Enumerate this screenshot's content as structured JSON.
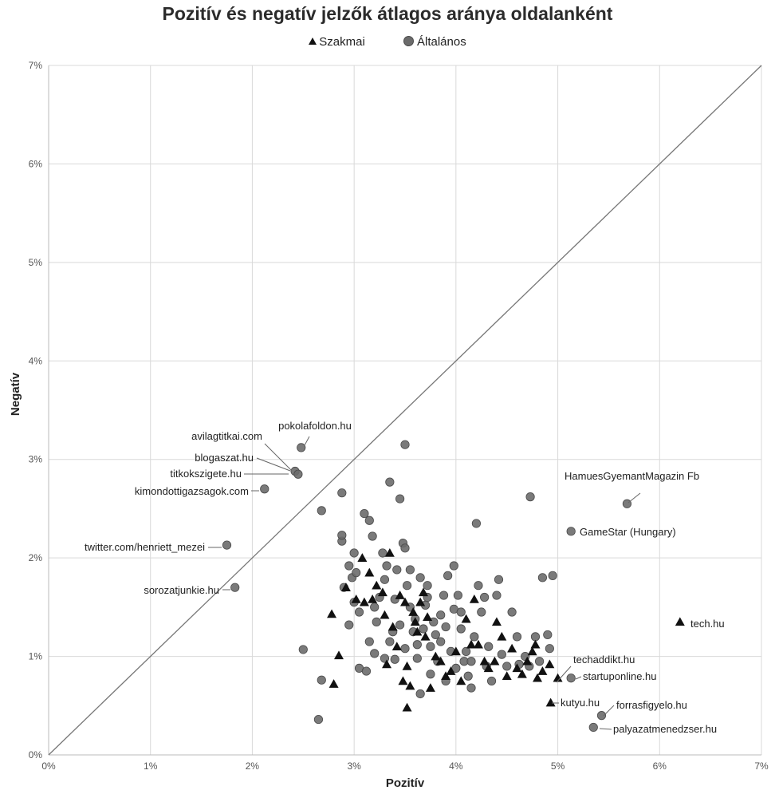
{
  "chart_data": {
    "type": "scatter",
    "title": "Pozitív és negatív jelzők átlagos aránya oldalanként",
    "xlabel": "Pozitív",
    "ylabel": "Negatív",
    "xlim": [
      0,
      7
    ],
    "ylim": [
      0,
      7
    ],
    "x_ticks": [
      "0%",
      "1%",
      "2%",
      "3%",
      "4%",
      "5%",
      "6%",
      "7%"
    ],
    "y_ticks": [
      "0%",
      "1%",
      "2%",
      "3%",
      "4%",
      "5%",
      "6%",
      "7%"
    ],
    "grid": true,
    "legend_position": "top",
    "reference_line": {
      "from": [
        0,
        0
      ],
      "to": [
        7,
        7
      ]
    },
    "colors": {
      "szakmai": "#111111",
      "altalanos": "#6b6b6b",
      "grid": "#d9d9d9",
      "diagonal": "#777777"
    },
    "series": [
      {
        "name": "Szakmai",
        "marker": "triangle",
        "points": [
          [
            2.78,
            1.43
          ],
          [
            2.85,
            1.01
          ],
          [
            2.8,
            0.72
          ],
          [
            3.02,
            1.58
          ],
          [
            3.08,
            2.0
          ],
          [
            3.1,
            1.55
          ],
          [
            3.15,
            1.85
          ],
          [
            3.18,
            1.58
          ],
          [
            3.22,
            1.72
          ],
          [
            3.28,
            1.65
          ],
          [
            3.3,
            1.42
          ],
          [
            3.35,
            2.05
          ],
          [
            3.38,
            1.3
          ],
          [
            3.42,
            1.1
          ],
          [
            3.45,
            1.62
          ],
          [
            3.48,
            0.75
          ],
          [
            3.5,
            1.55
          ],
          [
            3.52,
            0.9
          ],
          [
            3.55,
            0.7
          ],
          [
            3.58,
            1.45
          ],
          [
            3.6,
            1.35
          ],
          [
            3.62,
            1.25
          ],
          [
            3.65,
            1.55
          ],
          [
            3.68,
            1.65
          ],
          [
            3.7,
            1.2
          ],
          [
            3.72,
            1.4
          ],
          [
            3.75,
            0.68
          ],
          [
            3.8,
            1.0
          ],
          [
            3.85,
            0.95
          ],
          [
            3.9,
            0.8
          ],
          [
            3.95,
            0.85
          ],
          [
            4.0,
            1.05
          ],
          [
            4.05,
            0.75
          ],
          [
            4.1,
            1.38
          ],
          [
            4.15,
            1.12
          ],
          [
            4.18,
            1.58
          ],
          [
            4.22,
            1.12
          ],
          [
            4.28,
            0.95
          ],
          [
            4.32,
            0.88
          ],
          [
            4.38,
            0.95
          ],
          [
            4.4,
            1.35
          ],
          [
            4.45,
            1.2
          ],
          [
            4.5,
            0.8
          ],
          [
            4.55,
            1.08
          ],
          [
            4.6,
            0.88
          ],
          [
            4.65,
            0.82
          ],
          [
            4.7,
            0.95
          ],
          [
            4.75,
            1.05
          ],
          [
            4.8,
            0.78
          ],
          [
            4.85,
            0.85
          ],
          [
            4.92,
            0.92
          ],
          [
            5.0,
            0.78
          ],
          [
            4.78,
            1.12
          ],
          [
            3.52,
            0.48
          ],
          [
            3.32,
            0.92
          ],
          [
            2.92,
            1.7
          ],
          [
            4.93,
            0.53
          ],
          [
            6.2,
            1.35
          ]
        ]
      },
      {
        "name": "Általános",
        "marker": "circle",
        "points": [
          [
            2.48,
            3.12
          ],
          [
            2.42,
            2.88
          ],
          [
            2.45,
            2.85
          ],
          [
            2.12,
            2.7
          ],
          [
            1.75,
            2.13
          ],
          [
            1.83,
            1.7
          ],
          [
            2.5,
            1.07
          ],
          [
            2.65,
            0.36
          ],
          [
            2.68,
            0.76
          ],
          [
            2.68,
            2.48
          ],
          [
            2.88,
            2.66
          ],
          [
            2.88,
            2.17
          ],
          [
            2.88,
            2.23
          ],
          [
            2.9,
            1.7
          ],
          [
            2.95,
            1.92
          ],
          [
            2.98,
            1.8
          ],
          [
            3.0,
            1.55
          ],
          [
            3.0,
            2.05
          ],
          [
            3.02,
            1.85
          ],
          [
            3.05,
            1.45
          ],
          [
            3.05,
            0.88
          ],
          [
            3.1,
            2.45
          ],
          [
            3.12,
            0.85
          ],
          [
            3.15,
            2.38
          ],
          [
            3.18,
            2.22
          ],
          [
            3.2,
            1.5
          ],
          [
            3.22,
            1.35
          ],
          [
            3.25,
            1.6
          ],
          [
            3.28,
            2.05
          ],
          [
            3.3,
            1.78
          ],
          [
            3.32,
            1.92
          ],
          [
            3.35,
            2.77
          ],
          [
            3.35,
            1.15
          ],
          [
            3.38,
            1.25
          ],
          [
            3.4,
            1.58
          ],
          [
            3.42,
            1.88
          ],
          [
            3.45,
            2.6
          ],
          [
            3.45,
            1.32
          ],
          [
            3.48,
            2.15
          ],
          [
            3.5,
            2.1
          ],
          [
            3.5,
            1.08
          ],
          [
            3.52,
            1.72
          ],
          [
            3.55,
            1.5
          ],
          [
            3.58,
            1.25
          ],
          [
            3.6,
            1.38
          ],
          [
            3.62,
            1.12
          ],
          [
            3.62,
            0.98
          ],
          [
            3.65,
            1.8
          ],
          [
            3.68,
            1.28
          ],
          [
            3.7,
            1.52
          ],
          [
            3.72,
            1.72
          ],
          [
            3.75,
            0.82
          ],
          [
            3.75,
            1.1
          ],
          [
            3.78,
            1.35
          ],
          [
            3.8,
            1.22
          ],
          [
            3.82,
            0.95
          ],
          [
            3.85,
            1.42
          ],
          [
            3.88,
            1.62
          ],
          [
            3.9,
            0.75
          ],
          [
            3.9,
            1.3
          ],
          [
            3.92,
            1.82
          ],
          [
            3.95,
            1.05
          ],
          [
            3.98,
            1.92
          ],
          [
            3.98,
            1.48
          ],
          [
            4.0,
            0.88
          ],
          [
            4.02,
            1.62
          ],
          [
            4.05,
            1.28
          ],
          [
            4.08,
            0.95
          ],
          [
            4.1,
            1.05
          ],
          [
            4.12,
            0.8
          ],
          [
            4.15,
            0.68
          ],
          [
            4.18,
            1.2
          ],
          [
            4.2,
            2.35
          ],
          [
            4.22,
            1.72
          ],
          [
            4.25,
            1.45
          ],
          [
            4.28,
            1.6
          ],
          [
            4.3,
            0.9
          ],
          [
            4.32,
            1.1
          ],
          [
            4.35,
            0.75
          ],
          [
            4.4,
            1.62
          ],
          [
            4.42,
            1.78
          ],
          [
            4.45,
            1.02
          ],
          [
            4.5,
            0.9
          ],
          [
            4.55,
            1.45
          ],
          [
            4.6,
            1.2
          ],
          [
            4.62,
            0.92
          ],
          [
            4.68,
            1.0
          ],
          [
            4.72,
            0.9
          ],
          [
            4.78,
            1.2
          ],
          [
            4.82,
            0.95
          ],
          [
            4.85,
            1.8
          ],
          [
            4.9,
            1.22
          ],
          [
            4.92,
            1.08
          ],
          [
            4.95,
            1.82
          ],
          [
            3.5,
            3.15
          ],
          [
            4.73,
            2.62
          ],
          [
            5.13,
            0.78
          ],
          [
            5.13,
            2.27
          ],
          [
            5.68,
            2.55
          ],
          [
            5.43,
            0.4
          ],
          [
            5.35,
            0.28
          ],
          [
            3.2,
            1.03
          ],
          [
            3.4,
            0.97
          ],
          [
            3.55,
            1.88
          ],
          [
            3.65,
            0.62
          ],
          [
            3.85,
            1.15
          ],
          [
            4.05,
            1.45
          ],
          [
            3.3,
            0.98
          ],
          [
            2.95,
            1.32
          ],
          [
            3.15,
            1.15
          ],
          [
            3.72,
            1.6
          ],
          [
            4.15,
            0.95
          ]
        ]
      }
    ],
    "annotations": [
      {
        "text": "pokolafoldon.hu",
        "point": [
          2.48,
          3.12
        ]
      },
      {
        "text": "avilagtitkai.com",
        "point": [
          2.42,
          2.88
        ]
      },
      {
        "text": "blogaszat.hu",
        "point": [
          2.45,
          2.85
        ]
      },
      {
        "text": "titkokszigete.hu",
        "point": [
          2.42,
          2.88
        ]
      },
      {
        "text": "kimondottigazsagok.com",
        "point": [
          2.12,
          2.7
        ]
      },
      {
        "text": "twitter.com/henriett_mezei",
        "point": [
          1.75,
          2.13
        ]
      },
      {
        "text": "sorozatjunkie.hu",
        "point": [
          1.83,
          1.7
        ]
      },
      {
        "text": "HamuesGyemantMagazin Fb",
        "point": [
          5.68,
          2.55
        ]
      },
      {
        "text": "GameStar (Hungary)",
        "point": [
          5.13,
          2.27
        ]
      },
      {
        "text": "tech.hu",
        "point": [
          6.2,
          1.35
        ]
      },
      {
        "text": "techaddikt.hu",
        "point": [
          5.0,
          0.78
        ]
      },
      {
        "text": "startuponline.hu",
        "point": [
          5.13,
          0.78
        ]
      },
      {
        "text": "kutyu.hu",
        "point": [
          4.93,
          0.53
        ]
      },
      {
        "text": "forrasfigyelo.hu",
        "point": [
          5.43,
          0.4
        ]
      },
      {
        "text": "palyazatmenedzser.hu",
        "point": [
          5.35,
          0.28
        ]
      }
    ]
  }
}
